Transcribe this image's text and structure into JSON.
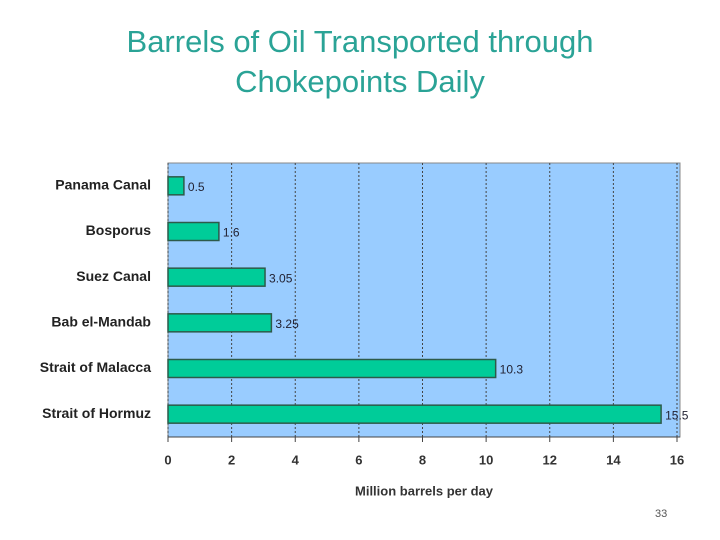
{
  "chart_data": {
    "type": "bar",
    "orientation": "horizontal",
    "title": "Barrels of Oil Transported through Chokepoints Daily",
    "x_label": "Million barrels per day",
    "categories": [
      "Panama Canal",
      "Bosporus",
      "Suez Canal",
      "Bab el-Mandab",
      "Strait of Malacca",
      "Strait of Hormuz"
    ],
    "values": [
      0.5,
      1.6,
      3.05,
      3.25,
      10.3,
      15.5
    ],
    "color": "#00cc99",
    "plot_background": "#99ccff",
    "xlim": [
      0,
      16
    ],
    "xticks": [
      0,
      2,
      4,
      6,
      8,
      10,
      12,
      14,
      16
    ],
    "grid": true
  },
  "page_number": 33
}
